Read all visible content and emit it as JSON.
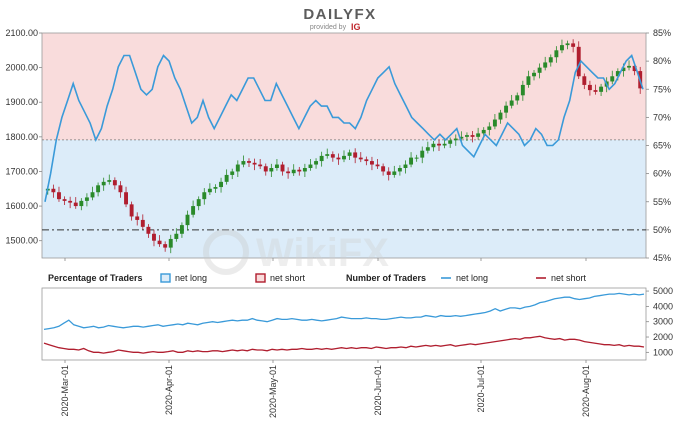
{
  "header": {
    "logo_main": "DAILYFX",
    "logo_sub": "provided by",
    "logo_ig": "IG"
  },
  "watermark": "WikiFX",
  "colors": {
    "net_long": "#3a9ad9",
    "net_short": "#b01e2f",
    "candle_up": "#2a8a2a",
    "candle_down": "#b01e2f",
    "bg_upper": "#f9dcdc",
    "bg_lower": "#dcecf9"
  },
  "legend": {
    "percentage_title": "Percentage of Traders",
    "net_long": "net long",
    "net_short": "net short",
    "number_title": "Number of Traders",
    "number_net_long": "net long",
    "number_net_short": "net short"
  },
  "chart_data": [
    {
      "type": "candlestick",
      "title": "",
      "left_axis": {
        "ticks": [
          "2100.00",
          "2000.00",
          "1900.00",
          "1800.00",
          "1700.00",
          "1600.00",
          "1500.00"
        ],
        "ylim": [
          1450,
          2100
        ]
      },
      "right_axis": {
        "ticks": [
          "85%",
          "80%",
          "75%",
          "70%",
          "65%",
          "60%",
          "55%",
          "50%",
          "45%"
        ],
        "ylim": [
          45,
          85
        ]
      },
      "reference_lines": [
        {
          "axis": "right",
          "value": 50,
          "style": "dash-dot"
        },
        {
          "axis": "right",
          "value": 66,
          "style": "dotted"
        }
      ],
      "x_ticks": [
        "2020-Mar-01",
        "2020-Apr-01",
        "2020-May-01",
        "2020-Jun-01",
        "2020-Jul-01",
        "2020-Aug-01"
      ],
      "price_close": [
        1650,
        1640,
        1620,
        1615,
        1610,
        1600,
        1615,
        1625,
        1640,
        1660,
        1670,
        1675,
        1660,
        1640,
        1605,
        1570,
        1560,
        1540,
        1520,
        1500,
        1490,
        1480,
        1505,
        1520,
        1545,
        1575,
        1600,
        1620,
        1640,
        1650,
        1655,
        1670,
        1690,
        1700,
        1720,
        1730,
        1725,
        1720,
        1715,
        1700,
        1710,
        1720,
        1700,
        1695,
        1705,
        1700,
        1710,
        1720,
        1730,
        1745,
        1750,
        1740,
        1735,
        1745,
        1755,
        1740,
        1735,
        1730,
        1720,
        1715,
        1700,
        1690,
        1700,
        1710,
        1720,
        1740,
        1740,
        1760,
        1770,
        1780,
        1775,
        1780,
        1790,
        1795,
        1800,
        1805,
        1800,
        1810,
        1820,
        1830,
        1850,
        1870,
        1890,
        1905,
        1920,
        1950,
        1975,
        1985,
        2000,
        2015,
        2030,
        2050,
        2065,
        2070,
        2060,
        1975,
        1950,
        1935,
        1930,
        1945,
        1960,
        1975,
        1990,
        2000,
        2005,
        1990,
        1940
      ],
      "series": [
        {
          "name": "net long",
          "axis": "right",
          "values": [
            55,
            60,
            66,
            70,
            73,
            76,
            73,
            71,
            69,
            66,
            68,
            72,
            75,
            79,
            81,
            81,
            78,
            75,
            74,
            75,
            79,
            81,
            80,
            77,
            75,
            72,
            69,
            70,
            73,
            70,
            68,
            70,
            72,
            74,
            73,
            75,
            77,
            77,
            75,
            73,
            73,
            76,
            74,
            72,
            70,
            68,
            70,
            72,
            73,
            72,
            72,
            70,
            70,
            69,
            69,
            68,
            70,
            73,
            75,
            77,
            78,
            79,
            76,
            74,
            72,
            70,
            69,
            68,
            67,
            66,
            67,
            66,
            67,
            68,
            65,
            64,
            63,
            65,
            67,
            66,
            65,
            67,
            69,
            68,
            67,
            65,
            66,
            68,
            67,
            65,
            65,
            66,
            70,
            73,
            78,
            80,
            79,
            78,
            77,
            77,
            75,
            76,
            78,
            80,
            81,
            78,
            75
          ]
        },
        {
          "name": "net short",
          "axis": "right"
        }
      ]
    },
    {
      "type": "line",
      "title": "",
      "y_ticks": [
        "5000",
        "4000",
        "3000",
        "2000",
        "1000"
      ],
      "ylim": [
        500,
        5200
      ],
      "series": [
        {
          "name": "net long",
          "values": [
            2500,
            2550,
            2600,
            2700,
            2900,
            3100,
            2800,
            2700,
            2600,
            2650,
            2700,
            2600,
            2650,
            2750,
            2700,
            2650,
            2600,
            2650,
            2700,
            2700,
            2650,
            2700,
            2750,
            2800,
            2700,
            2750,
            2800,
            2850,
            2800,
            2900,
            2850,
            2800,
            2900,
            2950,
            3000,
            2950,
            3000,
            3050,
            3100,
            3050,
            3100,
            3100,
            3200,
            3100,
            3050,
            3000,
            3100,
            3200,
            3150,
            3150,
            3200,
            3150,
            3100,
            3100,
            3150,
            3100,
            3050,
            3100,
            3150,
            3200,
            3300,
            3250,
            3200,
            3200,
            3200,
            3250,
            3200,
            3200,
            3150,
            3150,
            3200,
            3250,
            3300,
            3250,
            3250,
            3300,
            3300,
            3400,
            3350,
            3300,
            3400,
            3350,
            3350,
            3400,
            3350,
            3400,
            3450,
            3500,
            3550,
            3600,
            3700,
            3850,
            3700,
            3800,
            3900,
            3900,
            3850,
            3950,
            4000,
            4100,
            4250,
            4300,
            4400,
            4500,
            4550,
            4600,
            4600,
            4500,
            4450,
            4500,
            4550,
            4650,
            4700,
            4750,
            4800,
            4800,
            4850,
            4800,
            4750,
            4800,
            4750,
            4800
          ]
        },
        {
          "name": "net short",
          "values": [
            1600,
            1500,
            1400,
            1300,
            1250,
            1200,
            1200,
            1150,
            1250,
            1100,
            1000,
            1000,
            950,
            1000,
            1050,
            1150,
            1100,
            1050,
            1000,
            1000,
            950,
            1000,
            1050,
            1000,
            1000,
            1050,
            1100,
            1000,
            1000,
            1100,
            1050,
            1100,
            1050,
            1050,
            1100,
            1100,
            1050,
            1100,
            1150,
            1100,
            1150,
            1100,
            1200,
            1150,
            1150,
            1100,
            1200,
            1150,
            1200,
            1150,
            1200,
            1200,
            1250,
            1200,
            1200,
            1250,
            1200,
            1250,
            1200,
            1250,
            1300,
            1250,
            1300,
            1250,
            1300,
            1300,
            1250,
            1350,
            1300,
            1250,
            1300,
            1300,
            1350,
            1300,
            1400,
            1350,
            1400,
            1450,
            1400,
            1450,
            1400,
            1450,
            1500,
            1400,
            1450,
            1500,
            1550,
            1500,
            1550,
            1600,
            1650,
            1700,
            1750,
            1800,
            1850,
            1900,
            1850,
            1950,
            1950,
            2000,
            2050,
            1950,
            1900,
            1850,
            1900,
            1800,
            1850,
            1850,
            1800,
            1700,
            1650,
            1600,
            1550,
            1500,
            1500,
            1450,
            1500,
            1400,
            1450,
            1400,
            1400,
            1350
          ]
        }
      ]
    }
  ]
}
